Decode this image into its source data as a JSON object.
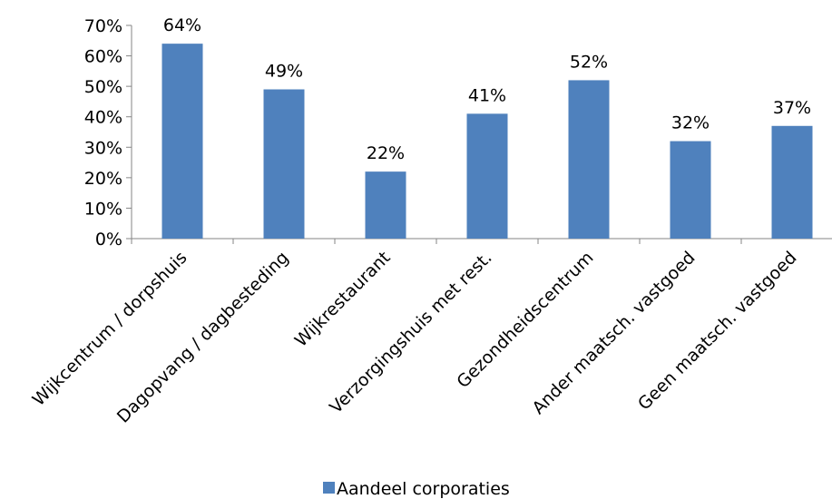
{
  "chart_data": {
    "type": "bar",
    "categories": [
      "Wijkcentrum / dorpshuis",
      "Dagopvang / dagbesteding",
      "Wijkrestaurant",
      "Verzorgingshuis met rest.",
      "Gezondheidscentrum",
      "Ander maatsch. vastgoed",
      "Geen maatsch. vastgoed"
    ],
    "series": [
      {
        "name": "Aandeel corporaties",
        "values": [
          64,
          49,
          22,
          41,
          52,
          32,
          37
        ],
        "labels": [
          "64%",
          "49%",
          "22%",
          "41%",
          "52%",
          "32%",
          "37%"
        ],
        "color": "#4F81BD"
      }
    ],
    "yticks": [
      "0%",
      "10%",
      "20%",
      "30%",
      "40%",
      "50%",
      "60%",
      "70%"
    ],
    "ylim": [
      0,
      70
    ],
    "grid": false,
    "legend_position": "bottom"
  }
}
